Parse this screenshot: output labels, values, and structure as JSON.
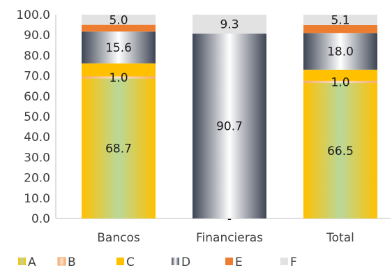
{
  "chart_data": {
    "type": "bar",
    "stacked": true,
    "categories": [
      "Bancos",
      "Financieras",
      "Total"
    ],
    "ylim": [
      0,
      100
    ],
    "yticks": [
      "0.0",
      "10.0",
      "20.0",
      "30.0",
      "40.0",
      "50.0",
      "60.0",
      "70.0",
      "80.0",
      "90.0",
      "100.0"
    ],
    "grid": false,
    "legend_position": "bottom",
    "series": [
      {
        "name": "A",
        "values": [
          68.7,
          0,
          66.5
        ],
        "labels": [
          "68.7",
          "",
          "66.5"
        ],
        "color": "#b9d89a",
        "fill": "grad-a"
      },
      {
        "name": "B",
        "values": [
          1.0,
          0,
          1.0
        ],
        "labels": [
          "1.0",
          "-",
          "1.0"
        ],
        "color": "#f4a86a",
        "fill": "grad-b"
      },
      {
        "name": "C",
        "values": [
          6.4,
          0,
          5.5
        ],
        "labels": [
          "",
          "",
          ""
        ],
        "color": "#ffc000",
        "fill": "solid"
      },
      {
        "name": "D",
        "values": [
          15.6,
          90.7,
          18.0
        ],
        "labels": [
          "15.6",
          "90.7",
          "18.0"
        ],
        "color": "#4a5262",
        "fill": "grad-d"
      },
      {
        "name": "E",
        "values": [
          3.3,
          0,
          3.9
        ],
        "labels": [
          "",
          "",
          ""
        ],
        "color": "#ed7d31",
        "fill": "solid"
      },
      {
        "name": "F",
        "values": [
          5.0,
          9.3,
          5.1
        ],
        "labels": [
          "5.0",
          "9.3",
          "5.1"
        ],
        "color": "#e2e2e2",
        "fill": "solid"
      }
    ]
  }
}
